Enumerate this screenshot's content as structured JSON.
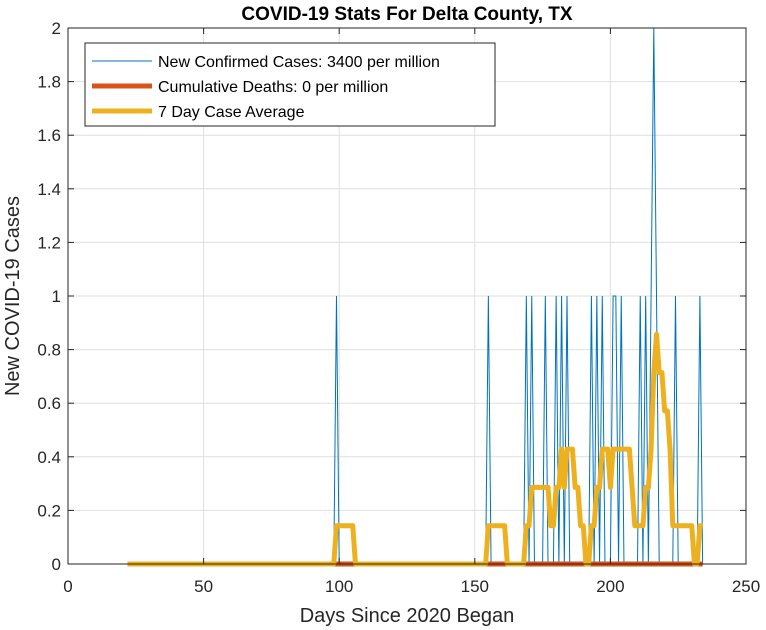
{
  "chart_data": {
    "type": "line",
    "title": "COVID-19 Stats For Delta County, TX",
    "xlabel": "Days Since 2020 Began",
    "ylabel": "New COVID-19 Cases",
    "xlim": [
      0,
      250
    ],
    "ylim": [
      0,
      2
    ],
    "xticks": [
      0,
      50,
      100,
      150,
      200,
      250
    ],
    "yticks": [
      0,
      0.2,
      0.4,
      0.6,
      0.8,
      1,
      1.2,
      1.4,
      1.6,
      1.8,
      2
    ],
    "grid": true,
    "legend_position": "top-left",
    "x_start": 22,
    "x_end": 234,
    "spikes": [
      [
        99,
        1
      ],
      [
        155,
        1
      ],
      [
        169,
        1
      ],
      [
        171,
        1
      ],
      [
        176,
        1
      ],
      [
        180,
        1
      ],
      [
        182,
        1
      ],
      [
        184,
        1
      ],
      [
        193,
        1
      ],
      [
        195,
        1
      ],
      [
        197,
        1
      ],
      [
        201,
        1
      ],
      [
        202,
        1
      ],
      [
        204,
        1
      ],
      [
        211,
        1
      ],
      [
        213,
        1
      ],
      [
        215,
        1
      ],
      [
        216,
        2
      ],
      [
        217,
        1
      ],
      [
        224,
        1
      ],
      [
        233,
        1
      ]
    ],
    "series": [
      {
        "name": "New Confirmed Cases: 3400 per million",
        "color": "#0072BD",
        "kind": "daily"
      },
      {
        "name": "Cumulative Deaths: 0 per million",
        "color": "#D95319",
        "kind": "constant",
        "value": 0
      },
      {
        "name": "7 Day Case Average",
        "color": "#EDB120",
        "kind": "rolling7"
      }
    ]
  }
}
